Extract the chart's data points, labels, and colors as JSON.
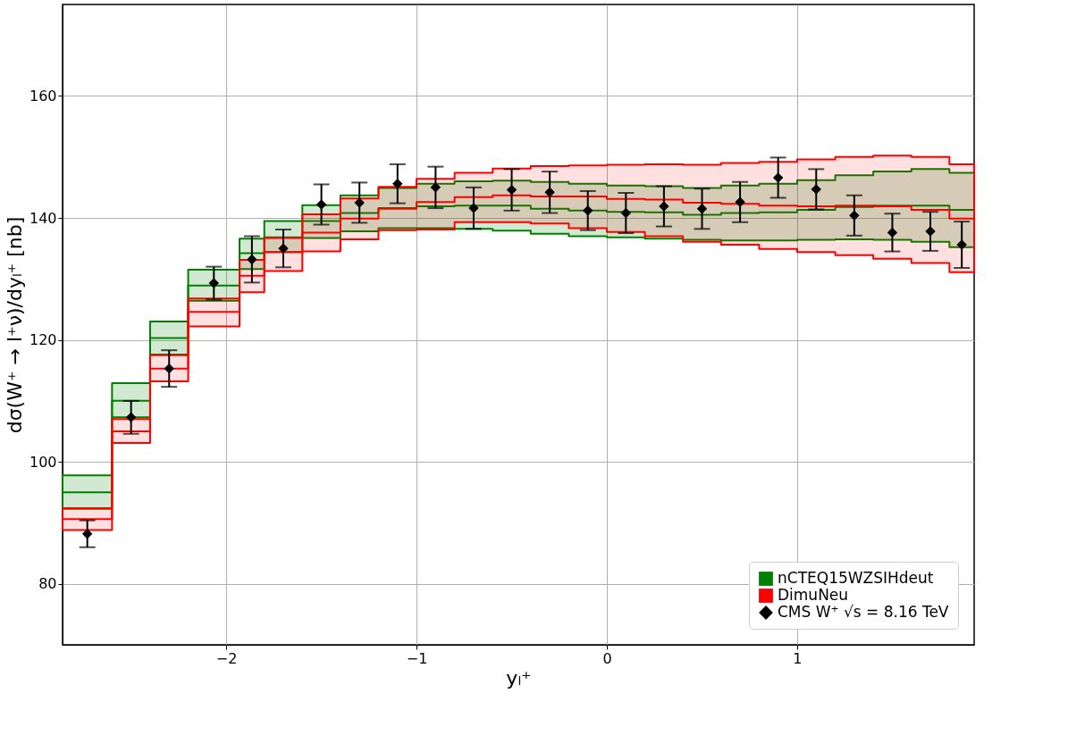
{
  "chart_data": {
    "type": "step",
    "xlabel": "yₗ⁺",
    "ylabel": "dσ(W⁺ → l⁺ν)/dyₗ⁺ [nb]",
    "xlim": [
      -2.86,
      1.93
    ],
    "ylim": [
      70,
      175
    ],
    "xticks": [
      {
        "value": -2,
        "label": "−2"
      },
      {
        "value": -1,
        "label": "−1"
      },
      {
        "value": 0,
        "label": "0"
      },
      {
        "value": 1,
        "label": "1"
      }
    ],
    "yticks": [
      80,
      100,
      120,
      140,
      160
    ],
    "grid": true,
    "legend": "bottom right",
    "series": [
      {
        "name": "nCTEQ15WZSIHdeut",
        "color": "#008000",
        "x": [
          -2.86,
          -2.6,
          -2.4,
          -2.2,
          -1.93,
          -1.8,
          -1.6,
          -1.4,
          -1.2,
          -1.0,
          -0.8,
          -0.6,
          -0.4,
          -0.2,
          0,
          0.2,
          0.4,
          0.6,
          0.8,
          1.0,
          1.2,
          1.4,
          1.6,
          1.8,
          1.93
        ],
        "values": [
          95.0,
          110.0,
          120.3,
          128.9,
          134.2,
          136.8,
          139.5,
          140.8,
          141.6,
          141.9,
          142.0,
          142.0,
          141.5,
          141.2,
          141.0,
          140.9,
          140.5,
          140.8,
          140.9,
          141.3,
          141.8,
          142.0,
          142.0,
          141.3,
          141.3
        ],
        "upper": [
          97.8,
          112.9,
          123.0,
          131.5,
          136.6,
          139.5,
          142.1,
          143.7,
          144.9,
          145.6,
          146.0,
          146.1,
          145.9,
          145.6,
          145.3,
          145.2,
          144.9,
          145.3,
          145.6,
          146.2,
          147.0,
          147.6,
          148.0,
          147.4,
          147.4
        ],
        "lower": [
          92.3,
          107.3,
          117.6,
          126.4,
          131.6,
          134.4,
          136.7,
          137.8,
          138.3,
          138.3,
          138.2,
          137.9,
          137.4,
          137.0,
          136.8,
          136.6,
          136.4,
          136.3,
          136.3,
          136.4,
          136.5,
          136.4,
          136.1,
          135.2,
          135.2
        ]
      },
      {
        "name": "DimuNeu",
        "color": "#ff0000",
        "x": [
          -2.86,
          -2.6,
          -2.4,
          -2.2,
          -1.93,
          -1.8,
          -1.6,
          -1.4,
          -1.2,
          -1.0,
          -0.8,
          -0.6,
          -0.4,
          -0.2,
          0,
          0.2,
          0.4,
          0.6,
          0.8,
          1.0,
          1.2,
          1.4,
          1.6,
          1.8,
          1.93
        ],
        "values": [
          90.6,
          105.0,
          115.3,
          124.6,
          130.5,
          134.4,
          137.6,
          139.9,
          141.5,
          142.6,
          143.4,
          143.7,
          143.5,
          143.5,
          143.1,
          143.0,
          142.5,
          142.3,
          142.0,
          141.9,
          142.0,
          141.9,
          141.3,
          139.9,
          139.9
        ],
        "upper": [
          92.4,
          107.0,
          117.5,
          126.8,
          133.1,
          136.7,
          140.6,
          143.2,
          145.1,
          146.4,
          147.4,
          148.1,
          148.5,
          148.6,
          148.7,
          148.8,
          148.7,
          149.0,
          149.2,
          149.6,
          150.0,
          150.2,
          150.0,
          148.8,
          148.8
        ],
        "lower": [
          88.8,
          103.1,
          113.2,
          122.2,
          127.8,
          131.3,
          134.5,
          136.5,
          138.0,
          138.1,
          139.3,
          139.3,
          139.1,
          138.3,
          137.7,
          137.0,
          136.1,
          135.6,
          134.9,
          134.4,
          133.9,
          133.3,
          132.6,
          131.1,
          131.1
        ]
      },
      {
        "name": "CMS W⁺ √s = 8.16 TeV",
        "type": "scatter",
        "color": "#000000",
        "marker": "diamond",
        "x": [
          -2.73,
          -2.5,
          -2.3,
          -2.065,
          -1.865,
          -1.7,
          -1.5,
          -1.3,
          -1.1,
          -0.9,
          -0.7,
          -0.5,
          -0.3,
          -0.1,
          0.1,
          0.3,
          0.5,
          0.7,
          0.9,
          1.1,
          1.3,
          1.5,
          1.7,
          1.865
        ],
        "values": [
          88.2,
          107.3,
          115.3,
          129.3,
          133.2,
          135.0,
          142.2,
          142.5,
          145.6,
          145.0,
          141.6,
          144.6,
          144.2,
          141.2,
          140.8,
          141.9,
          141.5,
          142.6,
          146.6,
          144.7,
          140.4,
          137.6,
          137.8,
          135.6
        ],
        "errors": [
          2.2,
          2.7,
          3.0,
          2.7,
          3.8,
          3.1,
          3.3,
          3.3,
          3.2,
          3.4,
          3.4,
          3.4,
          3.4,
          3.2,
          3.3,
          3.3,
          3.3,
          3.3,
          3.3,
          3.3,
          3.3,
          3.1,
          3.2,
          3.8
        ]
      }
    ]
  }
}
